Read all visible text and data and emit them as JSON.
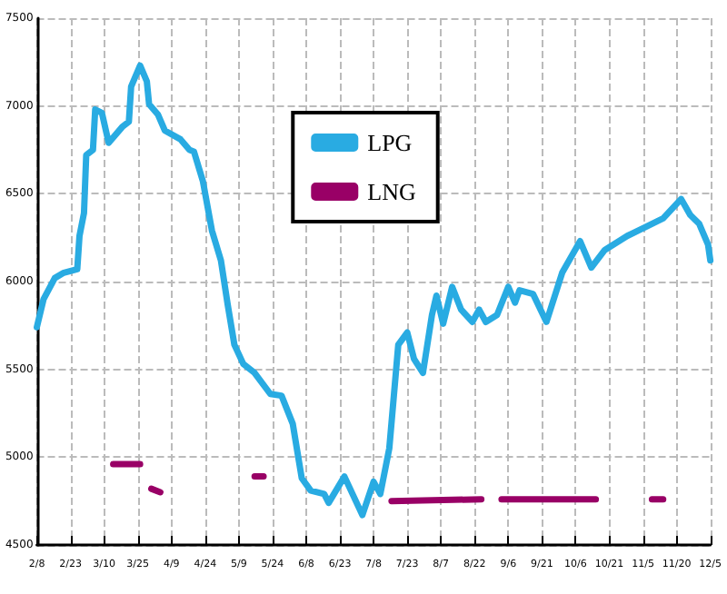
{
  "chart_data": {
    "type": "line",
    "xlim": [
      "--02-08",
      "--12-05"
    ],
    "xticks": [
      {
        "value": "--02-08",
        "label": "2/8"
      },
      {
        "value": "--02-23",
        "label": "2/23"
      },
      {
        "value": "--03-10",
        "label": "3/10"
      },
      {
        "value": "--03-25",
        "label": "3/25"
      },
      {
        "value": "--04-09",
        "label": "4/9"
      },
      {
        "value": "--04-24",
        "label": "4/24"
      },
      {
        "value": "--05-09",
        "label": "5/9"
      },
      {
        "value": "--05-24",
        "label": "5/24"
      },
      {
        "value": "--06-08",
        "label": "6/8"
      },
      {
        "value": "--06-23",
        "label": "6/23"
      },
      {
        "value": "--07-08",
        "label": "7/8"
      },
      {
        "value": "--07-23",
        "label": "7/23"
      },
      {
        "value": "--08-07",
        "label": "8/7"
      },
      {
        "value": "--08-22",
        "label": "8/22"
      },
      {
        "value": "--09-06",
        "label": "9/6"
      },
      {
        "value": "--09-21",
        "label": "9/21"
      },
      {
        "value": "--10-06",
        "label": "10/6"
      },
      {
        "value": "--10-21",
        "label": "10/21"
      },
      {
        "value": "--11-05",
        "label": "11/5"
      },
      {
        "value": "--11-20",
        "label": "11/20"
      },
      {
        "value": "--12-05",
        "label": "12/5"
      }
    ],
    "ylim": [
      4500,
      7500
    ],
    "yticks": [
      4500,
      5000,
      5500,
      6000,
      6500,
      7000,
      7500
    ],
    "grid": true,
    "legend": "top",
    "marker": "none",
    "line_style": "solid",
    "series": [
      {
        "name": "LPG",
        "color": "#29abe2",
        "x": [
          "--02-08",
          "--02-11",
          "--02-16",
          "--02-20",
          "--02-26",
          "--02-27",
          "--03-01",
          "--03-02",
          "--03-05",
          "--03-06",
          "--03-09",
          "--03-12",
          "--03-18",
          "--03-21",
          "--03-22",
          "--03-26",
          "--03-29",
          "--03-30",
          "--04-03",
          "--04-06",
          "--04-13",
          "--04-17",
          "--04-19",
          "--04-23",
          "--04-27",
          "--05-01",
          "--05-04",
          "--05-07",
          "--05-11",
          "--05-16",
          "--05-23",
          "--05-28",
          "--06-02",
          "--06-06",
          "--06-10",
          "--06-16",
          "--06-18",
          "--06-25",
          "--06-29",
          "--07-03",
          "--07-08",
          "--07-11",
          "--07-15",
          "--07-19",
          "--07-23",
          "--07-26",
          "--07-30",
          "--08-03",
          "--08-05",
          "--08-08",
          "--08-12",
          "--08-16",
          "--08-21",
          "--08-24",
          "--08-27",
          "--09-01",
          "--09-06",
          "--09-09",
          "--09-11",
          "--09-17",
          "--09-23",
          "--09-30",
          "--10-08",
          "--10-13",
          "--10-19",
          "--10-29",
          "--11-06",
          "--11-14",
          "--11-22",
          "--11-26",
          "--11-30",
          "--12-04",
          "--12-05"
        ],
        "values": [
          5740,
          5900,
          6020,
          6050,
          6070,
          6260,
          6390,
          6720,
          6750,
          6980,
          6960,
          6790,
          6880,
          6910,
          7110,
          7230,
          7140,
          7010,
          6950,
          6860,
          6810,
          6750,
          6740,
          6570,
          6290,
          6120,
          5870,
          5640,
          5530,
          5480,
          5360,
          5350,
          5190,
          4880,
          4810,
          4790,
          4740,
          4890,
          4780,
          4670,
          4860,
          4790,
          5050,
          5640,
          5710,
          5560,
          5480,
          5810,
          5920,
          5760,
          5970,
          5840,
          5770,
          5840,
          5770,
          5810,
          5970,
          5880,
          5950,
          5930,
          5770,
          6050,
          6230,
          6080,
          6180,
          6260,
          6310,
          6360,
          6470,
          6380,
          6330,
          6210,
          6120
        ]
      },
      {
        "name": "LNG",
        "color": "#990066",
        "x": [
          "--03-14",
          "--03-26",
          "--03-28",
          "--03-31",
          "--04-04",
          "--04-10",
          "--05-16",
          "--05-20",
          "--06-01",
          "--07-16",
          "--08-25",
          "--08-30",
          "--09-03",
          "--10-05",
          "--10-15",
          "--10-30",
          "--11-09",
          "--11-14"
        ],
        "values": [
          4960,
          4960,
          null,
          4820,
          4800,
          null,
          4890,
          4890,
          null,
          4750,
          4760,
          null,
          4760,
          4760,
          4760,
          null,
          4760,
          4760
        ]
      }
    ]
  }
}
